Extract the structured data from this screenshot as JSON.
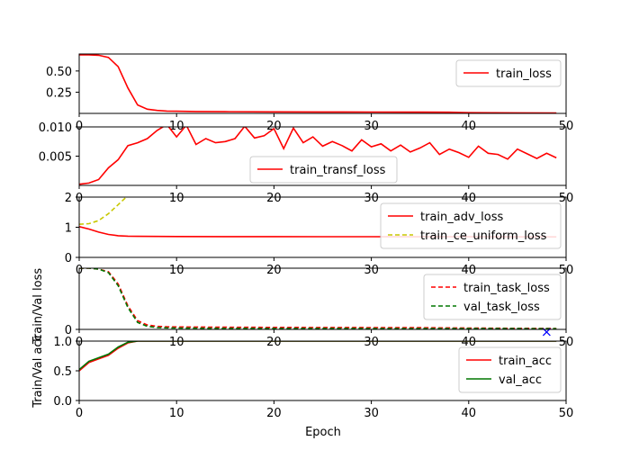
{
  "figure": {
    "xlabel": "Epoch",
    "ylabel_upper": "Train/Val loss",
    "ylabel_lower": "Train/Val acc"
  },
  "chart_data": [
    {
      "type": "line",
      "xlim": [
        0,
        50
      ],
      "ylim": [
        0,
        0.7
      ],
      "xticks": [
        0,
        10,
        20,
        30,
        40,
        50
      ],
      "yticks": [
        0.25,
        0.5
      ],
      "ytick_labels": [
        "0.25",
        "0.50"
      ],
      "legend": "top-right",
      "series": [
        {
          "name": "train_loss",
          "color": "#ff0000",
          "dash": "solid",
          "x": [
            0,
            1,
            2,
            3,
            4,
            5,
            6,
            7,
            8,
            9,
            10,
            12,
            15,
            20,
            25,
            30,
            35,
            38,
            40,
            45,
            49
          ],
          "y": [
            0.69,
            0.69,
            0.685,
            0.66,
            0.55,
            0.3,
            0.1,
            0.05,
            0.035,
            0.028,
            0.025,
            0.022,
            0.02,
            0.018,
            0.017,
            0.016,
            0.015,
            0.014,
            0.008,
            0.006,
            0.005
          ]
        }
      ]
    },
    {
      "type": "line",
      "xlim": [
        0,
        50
      ],
      "ylim": [
        0,
        0.01
      ],
      "xticks": [
        0,
        10,
        20,
        30,
        40,
        50
      ],
      "yticks": [
        0.005,
        0.01
      ],
      "ytick_labels": [
        "0.005",
        "0.010"
      ],
      "legend": "lower-center",
      "series": [
        {
          "name": "train_transf_loss",
          "color": "#ff0000",
          "dash": "solid",
          "x": [
            0,
            1,
            2,
            3,
            4,
            5,
            6,
            7,
            8,
            9,
            10,
            11,
            12,
            13,
            14,
            15,
            16,
            17,
            18,
            19,
            20,
            21,
            22,
            23,
            24,
            25,
            26,
            27,
            28,
            29,
            30,
            31,
            32,
            33,
            34,
            35,
            36,
            37,
            38,
            39,
            40,
            41,
            42,
            43,
            44,
            45,
            46,
            47,
            48,
            49
          ],
          "y": [
            0.0002,
            0.0004,
            0.001,
            0.003,
            0.0044,
            0.0068,
            0.0073,
            0.008,
            0.0094,
            0.0104,
            0.0083,
            0.0103,
            0.007,
            0.008,
            0.0073,
            0.0075,
            0.008,
            0.0101,
            0.0081,
            0.0085,
            0.0097,
            0.0063,
            0.0098,
            0.0073,
            0.0083,
            0.0067,
            0.0075,
            0.0068,
            0.0059,
            0.0078,
            0.0066,
            0.0071,
            0.0059,
            0.0069,
            0.0057,
            0.0064,
            0.0073,
            0.0053,
            0.0062,
            0.0056,
            0.0048,
            0.0067,
            0.0055,
            0.0053,
            0.0045,
            0.0062,
            0.0054,
            0.0046,
            0.0055,
            0.0047
          ]
        }
      ]
    },
    {
      "type": "line",
      "xlim": [
        0,
        50
      ],
      "ylim": [
        0,
        2
      ],
      "xticks": [
        0,
        10,
        20,
        30,
        40,
        50
      ],
      "yticks": [
        0,
        1,
        2
      ],
      "ytick_labels": [
        "0",
        "1",
        "2"
      ],
      "legend": "top-right",
      "series": [
        {
          "name": "train_adv_loss",
          "color": "#ff0000",
          "dash": "solid",
          "x": [
            0,
            1,
            2,
            3,
            4,
            5,
            6,
            8,
            10,
            15,
            20,
            25,
            30,
            35,
            40,
            45,
            49
          ],
          "y": [
            1.02,
            0.94,
            0.84,
            0.76,
            0.72,
            0.705,
            0.7,
            0.695,
            0.693,
            0.691,
            0.69,
            0.688,
            0.686,
            0.684,
            0.683,
            0.682,
            0.682
          ]
        },
        {
          "name": "train_ce_uniform_loss",
          "color": "#c8c800",
          "dash": "dashed",
          "x": [
            0,
            1,
            2,
            3,
            4,
            5,
            5.2
          ],
          "y": [
            1.1,
            1.12,
            1.22,
            1.45,
            1.75,
            2.05,
            2.15
          ]
        }
      ]
    },
    {
      "type": "line",
      "xlim": [
        0,
        50
      ],
      "ylim": [
        0,
        0.7
      ],
      "xticks": [
        0,
        10,
        20,
        30,
        40,
        50
      ],
      "yticks": [
        0
      ],
      "ytick_labels": [
        "0"
      ],
      "legend": "top-right",
      "series": [
        {
          "name": "train_task_loss",
          "color": "#ff0000",
          "dash": "dashed",
          "x": [
            0,
            1,
            2,
            3,
            4,
            5,
            6,
            7,
            8,
            9,
            10,
            15,
            20,
            25,
            30,
            35,
            40,
            45,
            49
          ],
          "y": [
            0.7,
            0.7,
            0.69,
            0.66,
            0.52,
            0.27,
            0.1,
            0.05,
            0.035,
            0.03,
            0.028,
            0.025,
            0.023,
            0.022,
            0.021,
            0.02,
            0.015,
            0.012,
            0.01
          ]
        },
        {
          "name": "val_task_loss",
          "color": "#007700",
          "dash": "dashed",
          "x": [
            0,
            1,
            2,
            3,
            4,
            5,
            6,
            7,
            8,
            9,
            10,
            15,
            20,
            25,
            30,
            35,
            40,
            45,
            49
          ],
          "y": [
            0.7,
            0.7,
            0.69,
            0.65,
            0.5,
            0.25,
            0.08,
            0.035,
            0.022,
            0.017,
            0.015,
            0.012,
            0.011,
            0.011,
            0.01,
            0.01,
            0.009,
            0.009,
            0.008
          ]
        }
      ],
      "marker": {
        "x": 48,
        "y": -0.03,
        "symbol": "x",
        "color": "#0000ff"
      }
    },
    {
      "type": "line",
      "xlim": [
        0,
        50
      ],
      "ylim": [
        0,
        1
      ],
      "xticks": [
        0,
        10,
        20,
        30,
        40,
        50
      ],
      "yticks": [
        0,
        0.5,
        1
      ],
      "ytick_labels": [
        "0.0",
        "0.5",
        "1.0"
      ],
      "legend": "top-right",
      "series": [
        {
          "name": "train_acc",
          "color": "#ff0000",
          "dash": "solid",
          "x": [
            0,
            1,
            2,
            3,
            4,
            5,
            6,
            7,
            10,
            20,
            30,
            40,
            49
          ],
          "y": [
            0.5,
            0.64,
            0.7,
            0.76,
            0.88,
            0.97,
            1.0,
            1.0,
            1.0,
            1.0,
            1.0,
            1.0,
            1.0
          ]
        },
        {
          "name": "val_acc",
          "color": "#007700",
          "dash": "solid",
          "x": [
            0,
            1,
            2,
            3,
            4,
            5,
            6,
            7,
            10,
            20,
            30,
            40,
            49
          ],
          "y": [
            0.52,
            0.66,
            0.72,
            0.78,
            0.9,
            0.98,
            1.0,
            1.0,
            1.0,
            1.0,
            1.0,
            1.0,
            1.0
          ]
        }
      ]
    }
  ]
}
